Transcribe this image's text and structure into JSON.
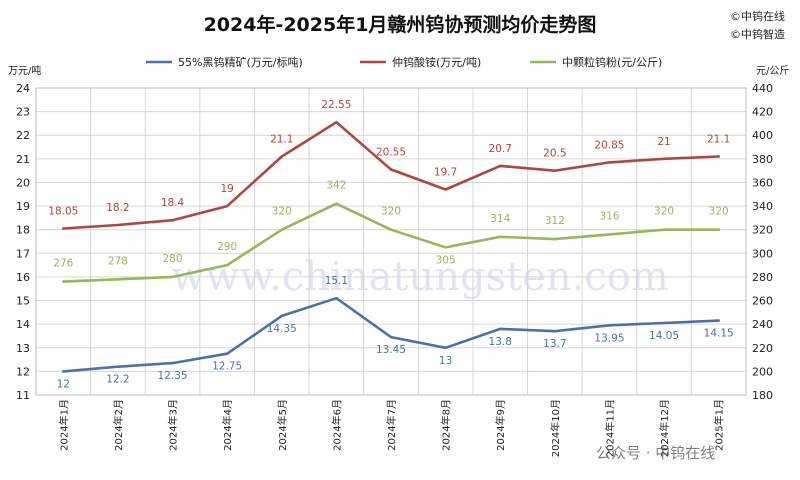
{
  "title": "2024年-2025年1月赣州钨协预测均价走势图",
  "credits": [
    "©中钨在线",
    "©中钨智造"
  ],
  "watermark": "www.chinatungsten.com",
  "watermark_bottom": "公众号 · 中钨在线",
  "chart_data": {
    "type": "line",
    "categories": [
      "2024年1月",
      "2024年2月",
      "2024年3月",
      "2024年4月",
      "2024年5月",
      "2024年6月",
      "2024年7月",
      "2024年8月",
      "2024年9月",
      "2024年10月",
      "2024年11月",
      "2024年12月",
      "2025年1月"
    ],
    "left_axis": {
      "unit": "万元/吨",
      "min": 11,
      "max": 24,
      "step": 1
    },
    "right_axis": {
      "unit": "元/公斤",
      "min": 180,
      "max": 440,
      "step": 20
    },
    "grid": true,
    "legend_position": "top",
    "series": [
      {
        "name": "55%黑钨精矿(万元/标吨)",
        "axis": "left",
        "color": "#4a72a6",
        "values": [
          12,
          12.2,
          12.35,
          12.75,
          14.35,
          15.1,
          13.45,
          13,
          13.8,
          13.7,
          13.95,
          14.05,
          14.15
        ],
        "labels": [
          "12",
          "12.2",
          "12.35",
          "12.75",
          "14.35",
          "15.1",
          "13.45",
          "13",
          "13.8",
          "13.7",
          "13.95",
          "14.05",
          "14.15"
        ]
      },
      {
        "name": "仲钨酸铵(万元/吨)",
        "axis": "left",
        "color": "#b04640",
        "values": [
          18.05,
          18.2,
          18.4,
          19,
          21.1,
          22.55,
          20.55,
          19.7,
          20.7,
          20.5,
          20.85,
          21,
          21.1
        ],
        "labels": [
          "18.05",
          "18.2",
          "18.4",
          "19",
          "21.1",
          "22.55",
          "20.55",
          "19.7",
          "20.7",
          "20.5",
          "20.85",
          "21",
          "21.1"
        ]
      },
      {
        "name": "中颗粒钨粉(元/公斤)",
        "axis": "right",
        "color": "#9bb55a",
        "values": [
          276,
          278,
          280,
          290,
          320,
          342,
          320,
          305,
          314,
          312,
          316,
          320,
          320
        ],
        "labels": [
          "276",
          "278",
          "280",
          "290",
          "320",
          "342",
          "320",
          "305",
          "314",
          "312",
          "316",
          "320",
          "320"
        ]
      }
    ]
  }
}
